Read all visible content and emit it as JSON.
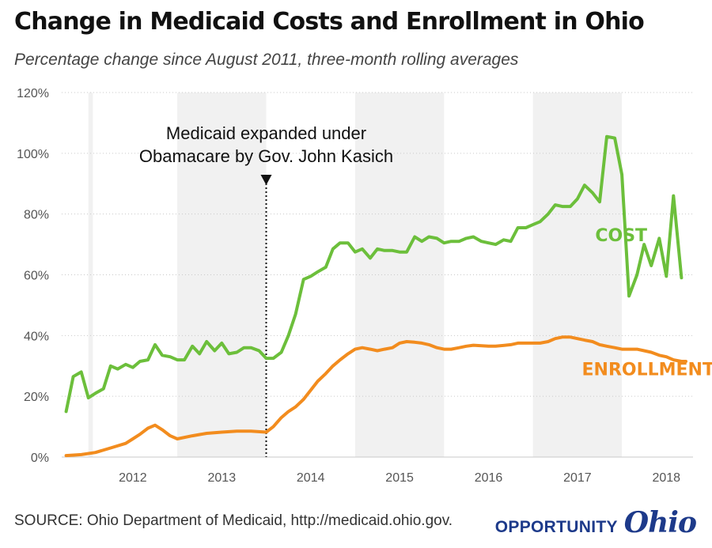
{
  "header": {
    "title": "Change in Medicaid Costs and Enrollment in Ohio",
    "subtitle": "Percentage change since August 2011, three-month rolling averages"
  },
  "footer": {
    "source": "SOURCE: Ohio Department of Medicaid, http://medicaid.ohio.gov.",
    "logo_word": "OPPORTUNITY",
    "logo_script": "Ohio"
  },
  "colors": {
    "cost": "#6cbf3b",
    "enrollment": "#f28c1e",
    "band": "#f1f1f1",
    "axis_text": "#555555"
  },
  "chart_data": {
    "type": "line",
    "title": "Change in Medicaid Costs and Enrollment in Ohio",
    "subtitle": "Percentage change since August 2011, three-month rolling averages",
    "x_range": [
      2011.2,
      2018.3
    ],
    "ylim": [
      0,
      120
    ],
    "y_ticks": [
      0,
      20,
      40,
      60,
      80,
      100,
      120
    ],
    "y_tick_labels": [
      "0%",
      "20%",
      "40%",
      "60%",
      "80%",
      "100%",
      "120%"
    ],
    "x_ticks": [
      2012,
      2013,
      2014,
      2015,
      2016,
      2017,
      2018
    ],
    "x_tick_labels": [
      "2012",
      "2013",
      "2014",
      "2015",
      "2016",
      "2017",
      "2018"
    ],
    "grid": "alternating vertical bands",
    "annotation": {
      "x": 2013.5,
      "line1": "Medicaid expanded under",
      "line2": "Obamacare by Gov. John Kasich"
    },
    "series": [
      {
        "name": "COST",
        "color": "#6cbf3b",
        "points": [
          [
            2011.25,
            15
          ],
          [
            2011.33,
            26.5
          ],
          [
            2011.42,
            28
          ],
          [
            2011.5,
            19.5
          ],
          [
            2011.58,
            21
          ],
          [
            2011.67,
            22.5
          ],
          [
            2011.75,
            30
          ],
          [
            2011.83,
            29
          ],
          [
            2011.92,
            30.5
          ],
          [
            2012.0,
            29.5
          ],
          [
            2012.08,
            31.5
          ],
          [
            2012.17,
            32
          ],
          [
            2012.25,
            37
          ],
          [
            2012.33,
            33.5
          ],
          [
            2012.42,
            33
          ],
          [
            2012.5,
            32
          ],
          [
            2012.58,
            32
          ],
          [
            2012.67,
            36.5
          ],
          [
            2012.75,
            34
          ],
          [
            2012.83,
            38
          ],
          [
            2012.92,
            35
          ],
          [
            2013.0,
            37.5
          ],
          [
            2013.08,
            34
          ],
          [
            2013.17,
            34.5
          ],
          [
            2013.25,
            36
          ],
          [
            2013.33,
            36
          ],
          [
            2013.42,
            35
          ],
          [
            2013.5,
            32.5
          ],
          [
            2013.58,
            32.5
          ],
          [
            2013.67,
            34.5
          ],
          [
            2013.75,
            40
          ],
          [
            2013.83,
            47
          ],
          [
            2013.92,
            58.5
          ],
          [
            2014.0,
            59.5
          ],
          [
            2014.08,
            61
          ],
          [
            2014.17,
            62.5
          ],
          [
            2014.25,
            68.5
          ],
          [
            2014.33,
            70.5
          ],
          [
            2014.42,
            70.5
          ],
          [
            2014.5,
            67.5
          ],
          [
            2014.58,
            68.5
          ],
          [
            2014.67,
            65.5
          ],
          [
            2014.75,
            68.5
          ],
          [
            2014.83,
            68
          ],
          [
            2014.92,
            68
          ],
          [
            2015.0,
            67.5
          ],
          [
            2015.08,
            67.5
          ],
          [
            2015.17,
            72.5
          ],
          [
            2015.25,
            71
          ],
          [
            2015.33,
            72.5
          ],
          [
            2015.42,
            72
          ],
          [
            2015.5,
            70.5
          ],
          [
            2015.58,
            71
          ],
          [
            2015.67,
            71
          ],
          [
            2015.75,
            72
          ],
          [
            2015.83,
            72.5
          ],
          [
            2015.92,
            71
          ],
          [
            2016.0,
            70.5
          ],
          [
            2016.08,
            70
          ],
          [
            2016.17,
            71.5
          ],
          [
            2016.25,
            71
          ],
          [
            2016.33,
            75.5
          ],
          [
            2016.42,
            75.5
          ],
          [
            2016.5,
            76.5
          ],
          [
            2016.58,
            77.5
          ],
          [
            2016.67,
            80
          ],
          [
            2016.75,
            83
          ],
          [
            2016.83,
            82.5
          ],
          [
            2016.92,
            82.5
          ],
          [
            2017.0,
            85
          ],
          [
            2017.08,
            89.5
          ],
          [
            2017.17,
            87
          ],
          [
            2017.25,
            84
          ],
          [
            2017.33,
            105.5
          ],
          [
            2017.42,
            105
          ],
          [
            2017.5,
            93
          ],
          [
            2017.58,
            53
          ],
          [
            2017.67,
            60
          ],
          [
            2017.75,
            70
          ],
          [
            2017.83,
            63
          ],
          [
            2017.92,
            72
          ],
          [
            2018.0,
            59.5
          ],
          [
            2018.08,
            86
          ],
          [
            2018.17,
            59
          ]
        ]
      },
      {
        "name": "ENROLLMENT",
        "color": "#f28c1e",
        "points": [
          [
            2011.25,
            0.5
          ],
          [
            2011.42,
            0.8
          ],
          [
            2011.58,
            1.5
          ],
          [
            2011.75,
            3
          ],
          [
            2011.92,
            4.5
          ],
          [
            2012.0,
            6
          ],
          [
            2012.08,
            7.5
          ],
          [
            2012.17,
            9.5
          ],
          [
            2012.25,
            10.5
          ],
          [
            2012.33,
            9
          ],
          [
            2012.42,
            7
          ],
          [
            2012.5,
            6
          ],
          [
            2012.67,
            7
          ],
          [
            2012.83,
            7.8
          ],
          [
            2013.0,
            8.2
          ],
          [
            2013.17,
            8.5
          ],
          [
            2013.33,
            8.5
          ],
          [
            2013.5,
            8.2
          ],
          [
            2013.58,
            10
          ],
          [
            2013.67,
            13
          ],
          [
            2013.75,
            15
          ],
          [
            2013.83,
            16.5
          ],
          [
            2013.92,
            19
          ],
          [
            2014.0,
            22
          ],
          [
            2014.08,
            25
          ],
          [
            2014.17,
            27.5
          ],
          [
            2014.25,
            30
          ],
          [
            2014.33,
            32
          ],
          [
            2014.42,
            34
          ],
          [
            2014.5,
            35.5
          ],
          [
            2014.58,
            36
          ],
          [
            2014.67,
            35.5
          ],
          [
            2014.75,
            35
          ],
          [
            2014.83,
            35.5
          ],
          [
            2014.92,
            36
          ],
          [
            2015.0,
            37.5
          ],
          [
            2015.08,
            38
          ],
          [
            2015.17,
            37.8
          ],
          [
            2015.25,
            37.5
          ],
          [
            2015.33,
            37
          ],
          [
            2015.42,
            36
          ],
          [
            2015.5,
            35.5
          ],
          [
            2015.58,
            35.5
          ],
          [
            2015.67,
            36
          ],
          [
            2015.75,
            36.5
          ],
          [
            2015.83,
            36.8
          ],
          [
            2016.0,
            36.5
          ],
          [
            2016.08,
            36.5
          ],
          [
            2016.25,
            37
          ],
          [
            2016.33,
            37.5
          ],
          [
            2016.5,
            37.5
          ],
          [
            2016.58,
            37.5
          ],
          [
            2016.67,
            38
          ],
          [
            2016.75,
            39
          ],
          [
            2016.83,
            39.5
          ],
          [
            2016.92,
            39.5
          ],
          [
            2017.0,
            39
          ],
          [
            2017.08,
            38.5
          ],
          [
            2017.17,
            38
          ],
          [
            2017.25,
            37
          ],
          [
            2017.33,
            36.5
          ],
          [
            2017.42,
            36
          ],
          [
            2017.5,
            35.5
          ],
          [
            2017.58,
            35.5
          ],
          [
            2017.67,
            35.5
          ],
          [
            2017.75,
            35
          ],
          [
            2017.83,
            34.5
          ],
          [
            2017.92,
            33.5
          ],
          [
            2018.0,
            33
          ],
          [
            2018.08,
            32
          ],
          [
            2018.17,
            31.5
          ],
          [
            2018.22,
            31.5
          ]
        ]
      }
    ],
    "series_labels": [
      {
        "name": "COST",
        "x": 2017.2,
        "y": 71
      },
      {
        "name": "ENROLLMENT",
        "x": 2017.05,
        "y": 27
      }
    ]
  }
}
